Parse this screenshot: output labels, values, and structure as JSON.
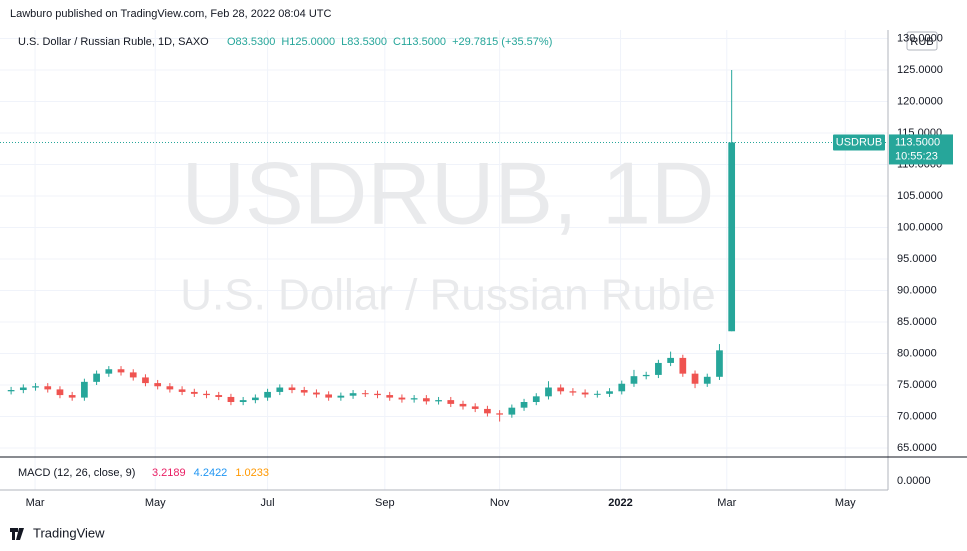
{
  "header": "Lawburo published on TradingView.com, Feb 28, 2022 08:04 UTC",
  "footer": "TradingView",
  "chart_data": {
    "type": "candlestick",
    "title": "U.S. Dollar / Russian Ruble, 1D, SAXO",
    "legend_values": [
      "O83.5300",
      "H125.0000",
      "L83.5300",
      "C113.5000",
      "+29.7815 (+35.57%)"
    ],
    "watermark": [
      "USDRUB, 1D",
      "U.S. Dollar / Russian Ruble"
    ],
    "currency": "RUB",
    "symbol": "USDRUB",
    "last_price": {
      "value": 113.5,
      "label": "113.5000"
    },
    "countdown": "10:55:23",
    "up_color": "#26a69a",
    "down_color": "#ef5350",
    "grid": true,
    "open": [
      74.0,
      74.2,
      74.6,
      74.8,
      74.3,
      73.4,
      73.0,
      75.5,
      76.8,
      77.5,
      77.0,
      76.2,
      75.3,
      74.8,
      74.3,
      73.9,
      73.6,
      73.4,
      73.1,
      72.3,
      72.6,
      73.0,
      73.9,
      74.6,
      74.2,
      73.8,
      73.5,
      73.0,
      73.3,
      73.7,
      73.6,
      73.4,
      73.0,
      72.7,
      72.9,
      72.4,
      72.6,
      72.0,
      71.6,
      71.2,
      70.5,
      70.3,
      71.4,
      72.3,
      73.2,
      74.6,
      74.0,
      73.8,
      73.5,
      73.6,
      74.0,
      75.2,
      76.4,
      76.6,
      78.5,
      79.3,
      76.8,
      75.2,
      76.3,
      83.53
    ],
    "high": [
      74.7,
      75.1,
      75.3,
      75.3,
      74.8,
      73.9,
      76.0,
      77.3,
      78.0,
      78.0,
      77.5,
      76.7,
      75.8,
      75.3,
      74.8,
      74.4,
      74.1,
      73.9,
      73.6,
      73.1,
      73.5,
      74.4,
      75.1,
      75.1,
      74.7,
      74.3,
      74.0,
      73.8,
      74.2,
      74.2,
      74.1,
      73.9,
      73.5,
      73.4,
      73.4,
      73.1,
      73.1,
      72.5,
      72.1,
      71.7,
      71.0,
      71.9,
      72.8,
      73.7,
      75.6,
      75.1,
      74.5,
      74.3,
      74.1,
      74.5,
      75.7,
      77.4,
      77.1,
      79.0,
      80.3,
      79.8,
      77.3,
      76.8,
      81.5,
      125
    ],
    "low": [
      73.5,
      73.7,
      74.1,
      73.8,
      72.9,
      72.5,
      72.5,
      75.0,
      76.3,
      76.5,
      75.7,
      74.8,
      74.3,
      73.8,
      73.4,
      73.1,
      72.9,
      72.6,
      71.8,
      71.8,
      72.1,
      72.5,
      73.4,
      73.7,
      73.3,
      73.0,
      72.5,
      72.5,
      72.8,
      73.1,
      72.9,
      72.5,
      72.2,
      72.2,
      71.9,
      71.9,
      71.5,
      71.1,
      70.7,
      70.0,
      69.2,
      69.8,
      70.9,
      71.8,
      72.7,
      73.5,
      73.3,
      73.0,
      73.0,
      73.1,
      73.5,
      74.7,
      75.9,
      76.1,
      78.0,
      76.3,
      74.5,
      74.7,
      75.8,
      83.53
    ],
    "close": [
      74.2,
      74.6,
      74.8,
      74.3,
      73.4,
      73.0,
      75.5,
      76.8,
      77.5,
      77.0,
      76.2,
      75.3,
      74.8,
      74.3,
      73.9,
      73.6,
      73.4,
      73.1,
      72.3,
      72.6,
      73.0,
      73.9,
      74.6,
      74.2,
      73.8,
      73.5,
      73.0,
      73.3,
      73.7,
      73.6,
      73.4,
      73.0,
      72.7,
      72.9,
      72.4,
      72.6,
      72.0,
      71.6,
      71.2,
      70.5,
      70.3,
      71.4,
      72.3,
      73.2,
      74.6,
      74.0,
      73.8,
      73.5,
      73.6,
      74.0,
      75.2,
      76.4,
      76.6,
      78.5,
      79.3,
      76.8,
      75.2,
      76.3,
      80.5,
      113.5
    ],
    "xlim": [
      -0.5,
      71.8
    ],
    "xticks": [
      {
        "value": 1.96,
        "label": "Mar"
      },
      {
        "value": 11.8,
        "label": "May"
      },
      {
        "value": 21.0,
        "label": "Jul"
      },
      {
        "value": 30.6,
        "label": "Sep"
      },
      {
        "value": 40.0,
        "label": "Nov"
      },
      {
        "value": 49.9,
        "label": "2022"
      },
      {
        "value": 58.6,
        "label": "Mar"
      },
      {
        "value": 68.3,
        "label": "May"
      }
    ],
    "ylim": [
      63.57,
      131.35
    ],
    "yticks": [
      {
        "value": 65,
        "label": "65.0000"
      },
      {
        "value": 70,
        "label": "70.0000"
      },
      {
        "value": 75,
        "label": "75.0000"
      },
      {
        "value": 80,
        "label": "80.0000"
      },
      {
        "value": 85,
        "label": "85.0000"
      },
      {
        "value": 90,
        "label": "90.0000"
      },
      {
        "value": 95,
        "label": "95.0000"
      },
      {
        "value": 100,
        "label": "100.0000"
      },
      {
        "value": 105,
        "label": "105.0000"
      },
      {
        "value": 110,
        "label": "110.0000"
      },
      {
        "value": 115,
        "label": "115.0000"
      },
      {
        "value": 120,
        "label": "120.0000"
      },
      {
        "value": 125,
        "label": "125.0000"
      },
      {
        "value": 130,
        "label": "130.0000"
      }
    ],
    "macd": {
      "label": "MACD (12, 26, close, 9)",
      "series": [
        {
          "value": 3.2189,
          "color": "#e91e63"
        },
        {
          "value": 4.2422,
          "color": "#2196f3"
        },
        {
          "value": 1.0233,
          "color": "#ff9800"
        }
      ],
      "zero": {
        "value": 0,
        "label": "0.0000"
      }
    }
  }
}
